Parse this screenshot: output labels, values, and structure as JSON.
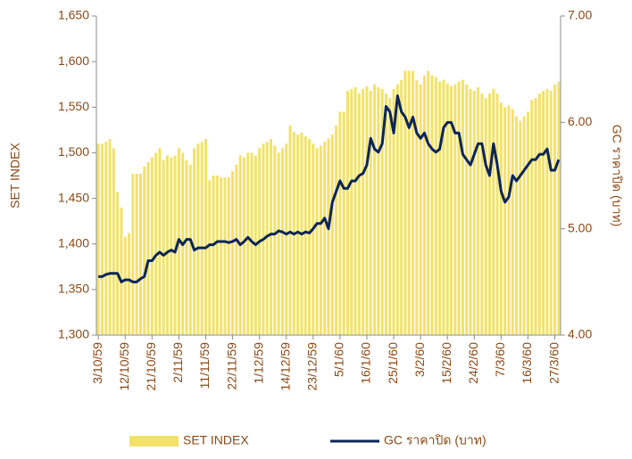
{
  "chart_data": {
    "type": "bar",
    "y_label": "SET INDEX",
    "y2_label": "GC ราคาปิด (บาท)",
    "categories": [
      "3/10/59",
      null,
      null,
      null,
      null,
      null,
      null,
      "12/10/59",
      null,
      null,
      null,
      null,
      null,
      null,
      "21/10/59",
      null,
      null,
      null,
      null,
      null,
      null,
      "2/11/59",
      null,
      null,
      null,
      null,
      null,
      null,
      "11/11/59",
      null,
      null,
      null,
      null,
      null,
      null,
      "22/11/59",
      null,
      null,
      null,
      null,
      null,
      null,
      "1/12/59",
      null,
      null,
      null,
      null,
      null,
      null,
      "14/12/59",
      null,
      null,
      null,
      null,
      null,
      null,
      "23/12/59",
      null,
      null,
      null,
      null,
      null,
      null,
      "5/1/60",
      null,
      null,
      null,
      null,
      null,
      null,
      "16/1/60",
      null,
      null,
      null,
      null,
      null,
      null,
      "25/1/60",
      null,
      null,
      null,
      null,
      null,
      null,
      "3/2/60",
      null,
      null,
      null,
      null,
      null,
      null,
      "15/2/60",
      null,
      null,
      null,
      null,
      null,
      null,
      "24/2/60",
      null,
      null,
      null,
      null,
      null,
      null,
      "7/3/60",
      null,
      null,
      null,
      null,
      null,
      null,
      "16/3/60",
      null,
      null,
      null,
      null,
      null,
      null,
      "27/3/60",
      null
    ],
    "series": [
      {
        "name": "SET INDEX",
        "type": "bar",
        "color": "#f3e26a",
        "values": [
          1510,
          1510,
          1512,
          1515,
          1505,
          1457,
          1440,
          1408,
          1412,
          1477,
          1477,
          1477,
          1485,
          1490,
          1495,
          1500,
          1505,
          1492,
          1497,
          1495,
          1497,
          1505,
          1500,
          1492,
          1487,
          1505,
          1510,
          1512,
          1515,
          1470,
          1475,
          1475,
          1473,
          1473,
          1473,
          1480,
          1487,
          1497,
          1495,
          1500,
          1500,
          1497,
          1505,
          1510,
          1512,
          1515,
          1508,
          1500,
          1505,
          1510,
          1530,
          1523,
          1520,
          1522,
          1518,
          1515,
          1510,
          1505,
          1508,
          1512,
          1516,
          1520,
          1530,
          1545,
          1545,
          1568,
          1570,
          1572,
          1565,
          1570,
          1573,
          1568,
          1575,
          1572,
          1570,
          1565,
          1560,
          1570,
          1575,
          1580,
          1590,
          1590,
          1590,
          1580,
          1575,
          1585,
          1590,
          1585,
          1583,
          1578,
          1580,
          1576,
          1573,
          1575,
          1578,
          1580,
          1575,
          1570,
          1568,
          1572,
          1565,
          1560,
          1565,
          1570,
          1565,
          1555,
          1550,
          1552,
          1548,
          1540,
          1535,
          1540,
          1545,
          1558,
          1560,
          1565,
          1568,
          1570,
          1568,
          1575,
          1578
        ]
      },
      {
        "name": "GC  ราคาปิด (บาท)",
        "type": "line",
        "axis": "y2",
        "color": "#0b2559",
        "values": [
          4.55,
          4.55,
          4.57,
          4.58,
          4.58,
          4.58,
          4.5,
          4.52,
          4.52,
          4.5,
          4.5,
          4.53,
          4.55,
          4.7,
          4.7,
          4.75,
          4.78,
          4.75,
          4.78,
          4.8,
          4.78,
          4.9,
          4.85,
          4.9,
          4.9,
          4.8,
          4.82,
          4.82,
          4.82,
          4.85,
          4.85,
          4.88,
          4.88,
          4.88,
          4.87,
          4.88,
          4.9,
          4.85,
          4.88,
          4.92,
          4.88,
          4.85,
          4.88,
          4.9,
          4.93,
          4.95,
          4.95,
          4.98,
          4.97,
          4.95,
          4.97,
          4.95,
          4.97,
          4.95,
          4.97,
          4.96,
          5.0,
          5.05,
          5.05,
          5.1,
          5.0,
          5.25,
          5.35,
          5.45,
          5.38,
          5.38,
          5.45,
          5.45,
          5.5,
          5.52,
          5.6,
          5.85,
          5.75,
          5.72,
          5.8,
          6.15,
          6.1,
          5.9,
          6.25,
          6.1,
          6.05,
          5.95,
          6.05,
          5.9,
          5.85,
          5.9,
          5.8,
          5.75,
          5.72,
          5.75,
          5.95,
          6.0,
          6.0,
          5.9,
          5.9,
          5.7,
          5.65,
          5.6,
          5.7,
          5.8,
          5.8,
          5.6,
          5.5,
          5.8,
          5.6,
          5.35,
          5.25,
          5.3,
          5.5,
          5.45,
          5.5,
          5.55,
          5.6,
          5.65,
          5.65,
          5.7,
          5.7,
          5.75,
          5.55,
          5.55,
          5.65
        ]
      }
    ],
    "ylim": [
      1300,
      1650
    ],
    "yticks": [
      {
        "value": 1300,
        "label": "1,300"
      },
      {
        "value": 1350,
        "label": "1,350"
      },
      {
        "value": 1400,
        "label": "1,400"
      },
      {
        "value": 1450,
        "label": "1,450"
      },
      {
        "value": 1500,
        "label": "1,500"
      },
      {
        "value": 1550,
        "label": "1,550"
      },
      {
        "value": 1600,
        "label": "1,600"
      },
      {
        "value": 1650,
        "label": "1,650"
      }
    ],
    "y2lim": [
      4,
      7
    ],
    "y2ticks": [
      {
        "value": 4,
        "label": "4.00"
      },
      {
        "value": 5,
        "label": "5.00"
      },
      {
        "value": 6,
        "label": "6.00"
      },
      {
        "value": 7,
        "label": "7.00"
      }
    ],
    "legend": "bottom"
  }
}
